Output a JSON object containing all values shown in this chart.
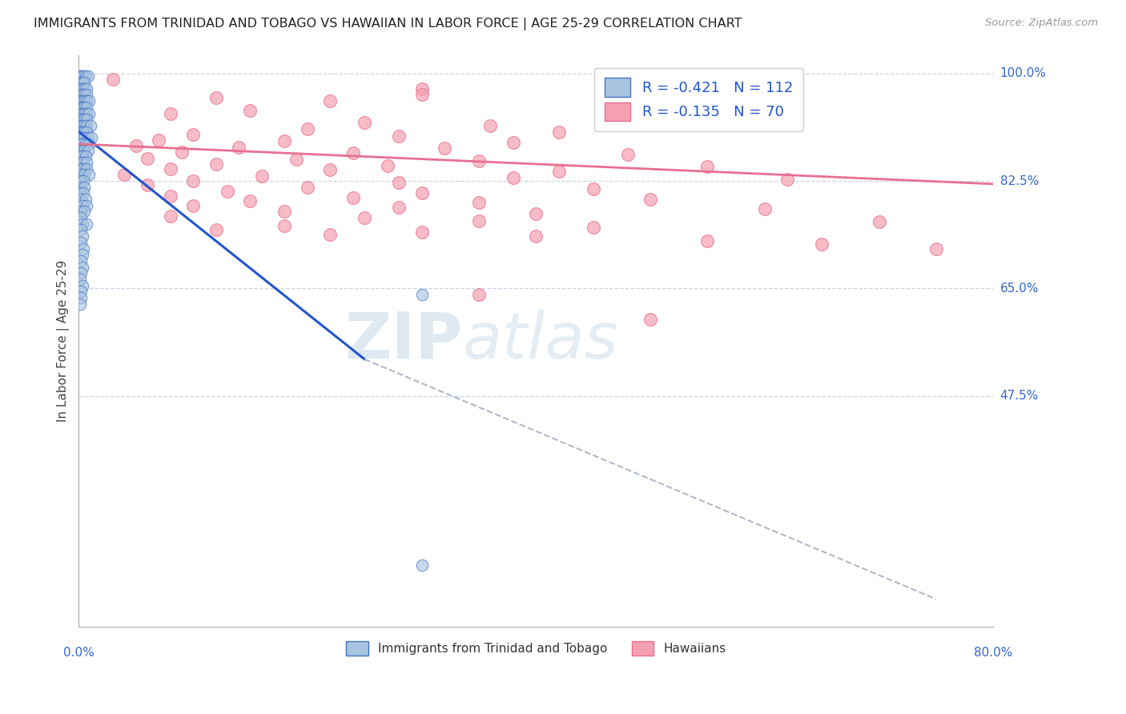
{
  "title": "IMMIGRANTS FROM TRINIDAD AND TOBAGO VS HAWAIIAN IN LABOR FORCE | AGE 25-29 CORRELATION CHART",
  "source": "Source: ZipAtlas.com",
  "ylabel": "In Labor Force | Age 25-29",
  "yticks_right": [
    "100.0%",
    "82.5%",
    "65.0%",
    "47.5%"
  ],
  "yticks_right_vals": [
    1.0,
    0.825,
    0.65,
    0.475
  ],
  "legend_entries": [
    {
      "label": "R = -0.421   N = 112",
      "color": "#a8c4e0"
    },
    {
      "label": "R = -0.135   N = 70",
      "color": "#f4a0b0"
    }
  ],
  "blue_scatter": [
    [
      0.001,
      0.995
    ],
    [
      0.002,
      0.995
    ],
    [
      0.004,
      0.995
    ],
    [
      0.006,
      0.995
    ],
    [
      0.008,
      0.995
    ],
    [
      0.001,
      0.985
    ],
    [
      0.003,
      0.985
    ],
    [
      0.005,
      0.985
    ],
    [
      0.001,
      0.975
    ],
    [
      0.003,
      0.975
    ],
    [
      0.005,
      0.975
    ],
    [
      0.007,
      0.975
    ],
    [
      0.001,
      0.965
    ],
    [
      0.003,
      0.965
    ],
    [
      0.005,
      0.965
    ],
    [
      0.007,
      0.965
    ],
    [
      0.001,
      0.955
    ],
    [
      0.003,
      0.955
    ],
    [
      0.005,
      0.955
    ],
    [
      0.007,
      0.955
    ],
    [
      0.009,
      0.955
    ],
    [
      0.001,
      0.945
    ],
    [
      0.003,
      0.945
    ],
    [
      0.005,
      0.945
    ],
    [
      0.007,
      0.945
    ],
    [
      0.001,
      0.935
    ],
    [
      0.003,
      0.935
    ],
    [
      0.005,
      0.935
    ],
    [
      0.007,
      0.935
    ],
    [
      0.009,
      0.935
    ],
    [
      0.001,
      0.925
    ],
    [
      0.003,
      0.925
    ],
    [
      0.005,
      0.925
    ],
    [
      0.007,
      0.925
    ],
    [
      0.001,
      0.915
    ],
    [
      0.003,
      0.915
    ],
    [
      0.005,
      0.915
    ],
    [
      0.007,
      0.915
    ],
    [
      0.01,
      0.915
    ],
    [
      0.001,
      0.905
    ],
    [
      0.003,
      0.905
    ],
    [
      0.005,
      0.905
    ],
    [
      0.007,
      0.905
    ],
    [
      0.001,
      0.895
    ],
    [
      0.003,
      0.895
    ],
    [
      0.005,
      0.895
    ],
    [
      0.008,
      0.895
    ],
    [
      0.011,
      0.895
    ],
    [
      0.001,
      0.885
    ],
    [
      0.003,
      0.885
    ],
    [
      0.006,
      0.885
    ],
    [
      0.009,
      0.885
    ],
    [
      0.001,
      0.875
    ],
    [
      0.003,
      0.875
    ],
    [
      0.005,
      0.875
    ],
    [
      0.008,
      0.875
    ],
    [
      0.001,
      0.865
    ],
    [
      0.003,
      0.865
    ],
    [
      0.006,
      0.865
    ],
    [
      0.002,
      0.855
    ],
    [
      0.004,
      0.855
    ],
    [
      0.007,
      0.855
    ],
    [
      0.001,
      0.845
    ],
    [
      0.004,
      0.845
    ],
    [
      0.007,
      0.845
    ],
    [
      0.002,
      0.835
    ],
    [
      0.005,
      0.835
    ],
    [
      0.009,
      0.835
    ],
    [
      0.001,
      0.825
    ],
    [
      0.004,
      0.825
    ],
    [
      0.002,
      0.815
    ],
    [
      0.005,
      0.815
    ],
    [
      0.001,
      0.805
    ],
    [
      0.004,
      0.805
    ],
    [
      0.002,
      0.795
    ],
    [
      0.006,
      0.795
    ],
    [
      0.003,
      0.785
    ],
    [
      0.007,
      0.785
    ],
    [
      0.002,
      0.775
    ],
    [
      0.005,
      0.775
    ],
    [
      0.002,
      0.765
    ],
    [
      0.003,
      0.755
    ],
    [
      0.007,
      0.755
    ],
    [
      0.002,
      0.745
    ],
    [
      0.003,
      0.735
    ],
    [
      0.002,
      0.725
    ],
    [
      0.004,
      0.715
    ],
    [
      0.003,
      0.705
    ],
    [
      0.002,
      0.695
    ],
    [
      0.003,
      0.685
    ],
    [
      0.002,
      0.675
    ],
    [
      0.001,
      0.665
    ],
    [
      0.003,
      0.655
    ],
    [
      0.002,
      0.645
    ],
    [
      0.002,
      0.635
    ],
    [
      0.001,
      0.625
    ],
    [
      0.3,
      0.64
    ],
    [
      0.3,
      0.2
    ]
  ],
  "pink_scatter": [
    [
      0.03,
      0.99
    ],
    [
      0.3,
      0.975
    ],
    [
      0.3,
      0.965
    ],
    [
      0.12,
      0.96
    ],
    [
      0.22,
      0.955
    ],
    [
      0.15,
      0.94
    ],
    [
      0.08,
      0.935
    ],
    [
      0.25,
      0.92
    ],
    [
      0.36,
      0.915
    ],
    [
      0.2,
      0.91
    ],
    [
      0.42,
      0.905
    ],
    [
      0.1,
      0.9
    ],
    [
      0.28,
      0.898
    ],
    [
      0.07,
      0.892
    ],
    [
      0.18,
      0.89
    ],
    [
      0.38,
      0.888
    ],
    [
      0.05,
      0.882
    ],
    [
      0.14,
      0.88
    ],
    [
      0.32,
      0.878
    ],
    [
      0.09,
      0.872
    ],
    [
      0.24,
      0.87
    ],
    [
      0.48,
      0.868
    ],
    [
      0.06,
      0.862
    ],
    [
      0.19,
      0.86
    ],
    [
      0.35,
      0.858
    ],
    [
      0.12,
      0.852
    ],
    [
      0.27,
      0.85
    ],
    [
      0.55,
      0.848
    ],
    [
      0.08,
      0.845
    ],
    [
      0.22,
      0.843
    ],
    [
      0.42,
      0.84
    ],
    [
      0.04,
      0.835
    ],
    [
      0.16,
      0.833
    ],
    [
      0.38,
      0.83
    ],
    [
      0.62,
      0.828
    ],
    [
      0.1,
      0.825
    ],
    [
      0.28,
      0.822
    ],
    [
      0.06,
      0.818
    ],
    [
      0.2,
      0.815
    ],
    [
      0.45,
      0.812
    ],
    [
      0.13,
      0.808
    ],
    [
      0.3,
      0.805
    ],
    [
      0.08,
      0.8
    ],
    [
      0.24,
      0.798
    ],
    [
      0.5,
      0.795
    ],
    [
      0.15,
      0.792
    ],
    [
      0.35,
      0.79
    ],
    [
      0.1,
      0.785
    ],
    [
      0.28,
      0.782
    ],
    [
      0.6,
      0.78
    ],
    [
      0.18,
      0.775
    ],
    [
      0.4,
      0.772
    ],
    [
      0.08,
      0.768
    ],
    [
      0.25,
      0.765
    ],
    [
      0.35,
      0.76
    ],
    [
      0.7,
      0.758
    ],
    [
      0.18,
      0.752
    ],
    [
      0.45,
      0.75
    ],
    [
      0.12,
      0.745
    ],
    [
      0.3,
      0.742
    ],
    [
      0.22,
      0.738
    ],
    [
      0.4,
      0.735
    ],
    [
      0.55,
      0.728
    ],
    [
      0.65,
      0.722
    ],
    [
      0.75,
      0.715
    ],
    [
      0.35,
      0.64
    ],
    [
      0.5,
      0.6
    ]
  ],
  "blue_line_solid": [
    [
      0.0,
      0.905
    ],
    [
      0.25,
      0.535
    ]
  ],
  "blue_line_dashed": [
    [
      0.25,
      0.535
    ],
    [
      0.75,
      0.145
    ]
  ],
  "pink_line": [
    [
      0.0,
      0.885
    ],
    [
      0.8,
      0.82
    ]
  ],
  "blue_color": "#4472c4",
  "pink_color": "#e87090",
  "blue_fill": "#a8c4e0",
  "pink_fill": "#f4a0b0",
  "trend_blue": "#2255cc",
  "trend_pink": "#e87090",
  "trend_dashed": "#b0b8c8",
  "watermark_zip": "ZIP",
  "watermark_atlas": "atlas",
  "xmin": 0.0,
  "xmax": 0.8,
  "ymin": 0.1,
  "ymax": 1.03,
  "grid_color": "#c8d4e8",
  "background_color": "#ffffff"
}
